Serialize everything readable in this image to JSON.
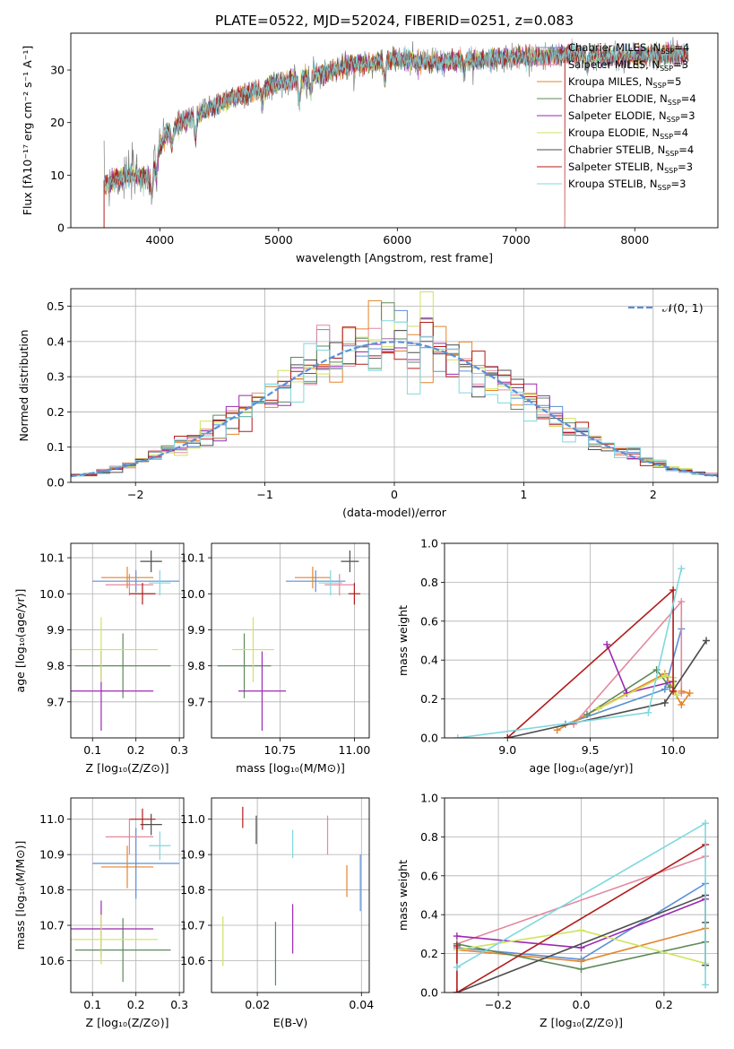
{
  "figure": {
    "title": "PLATE=0522, MJD=52024, FIBERID=0251, z=0.083"
  },
  "colors": {
    "Chabrier MILES": "#5b8fd9",
    "Salpeter MILES": "#e4899e",
    "Kroupa MILES": "#e3852b",
    "Chabrier ELODIE": "#5d8a5a",
    "Salpeter ELODIE": "#9a2ab1",
    "Kroupa ELODIE": "#cfe35e",
    "Chabrier STELIB": "#4d4d4d",
    "Salpeter STELIB": "#b31b1b",
    "Kroupa STELIB": "#7fd8df",
    "data": "#808080",
    "gaussian": "#5b8fd9"
  },
  "chart_data": [
    {
      "id": "spectrum",
      "type": "line",
      "xlabel": "wavelength [Angstrom, rest frame]",
      "ylabel": "Flux [fλ10⁻¹⁷ erg cm⁻² s⁻¹ A⁻¹]",
      "xlim": [
        3250,
        8700
      ],
      "ylim": [
        0,
        37
      ],
      "xticks": [
        4000,
        5000,
        6000,
        7000,
        8000
      ],
      "yticks": [
        0,
        10,
        20,
        30
      ],
      "legend_position": "top-right",
      "legend": [
        {
          "label": "Chabrier MILES, N",
          "sub": "SSP",
          "eq": "=4",
          "series": "Chabrier MILES"
        },
        {
          "label": "Salpeter MILES, N",
          "sub": "SSP",
          "eq": "=3",
          "series": "Salpeter MILES"
        },
        {
          "label": "Kroupa MILES, N",
          "sub": "SSP",
          "eq": "=5",
          "series": "Kroupa MILES"
        },
        {
          "label": "Chabrier ELODIE, N",
          "sub": "SSP",
          "eq": "=4",
          "series": "Chabrier ELODIE"
        },
        {
          "label": "Salpeter ELODIE, N",
          "sub": "SSP",
          "eq": "=3",
          "series": "Salpeter ELODIE"
        },
        {
          "label": "Kroupa ELODIE, N",
          "sub": "SSP",
          "eq": "=4",
          "series": "Kroupa ELODIE"
        },
        {
          "label": "Chabrier STELIB, N",
          "sub": "SSP",
          "eq": "=4",
          "series": "Chabrier STELIB"
        },
        {
          "label": "Salpeter STELIB, N",
          "sub": "SSP",
          "eq": "=3",
          "series": "Salpeter STELIB"
        },
        {
          "label": "Kroupa STELIB, N",
          "sub": "SSP",
          "eq": "=3",
          "series": "Kroupa STELIB"
        }
      ],
      "continuum": [
        [
          3530,
          8
        ],
        [
          3650,
          9.5
        ],
        [
          3800,
          10
        ],
        [
          3930,
          9.5
        ],
        [
          3960,
          13
        ],
        [
          4050,
          18
        ],
        [
          4200,
          20
        ],
        [
          4400,
          22.5
        ],
        [
          4600,
          24.5
        ],
        [
          4800,
          26
        ],
        [
          5000,
          27.5
        ],
        [
          5200,
          28.5
        ],
        [
          5400,
          29.5
        ],
        [
          5600,
          31
        ],
        [
          5800,
          31.5
        ],
        [
          6000,
          32
        ],
        [
          6200,
          31.5
        ],
        [
          6400,
          31.5
        ],
        [
          6600,
          32
        ],
        [
          6800,
          32
        ],
        [
          7000,
          32.5
        ],
        [
          7200,
          32.5
        ],
        [
          7400,
          33
        ],
        [
          7600,
          33
        ],
        [
          7800,
          32.5
        ],
        [
          8000,
          32.5
        ],
        [
          8200,
          33
        ],
        [
          8400,
          33
        ]
      ],
      "absorption_dips": [
        [
          3934,
          4
        ],
        [
          3969,
          4
        ],
        [
          4102,
          3
        ],
        [
          4300,
          4
        ],
        [
          4861,
          3
        ],
        [
          5175,
          5
        ],
        [
          5270,
          3
        ],
        [
          5893,
          4
        ],
        [
          6563,
          2
        ],
        [
          7600,
          3
        ]
      ],
      "model_cutoffs": [
        {
          "series": "Kroupa ELODIE",
          "x": 6800
        },
        {
          "series": "Salpeter STELIB",
          "x": 7410
        },
        {
          "series": "Chabrier ELODIE",
          "x": 3900
        }
      ]
    },
    {
      "id": "residual-histogram",
      "type": "histogram",
      "xlabel": "(data-model)/error",
      "ylabel": "Normed distribution",
      "xlim": [
        -2.5,
        2.5
      ],
      "ylim": [
        0,
        0.55
      ],
      "xticks": [
        -2,
        -1,
        0,
        1,
        2
      ],
      "yticks": [
        0.0,
        0.1,
        0.2,
        0.3,
        0.4,
        0.5
      ],
      "bin_width": 0.1,
      "reference_curve": {
        "name": "𝒩(0, 1)",
        "mean": 0,
        "sigma": 1
      },
      "legend_position": "top-right"
    },
    {
      "id": "age-vs-Z",
      "type": "errorbar",
      "xlabel": "Z [log₁₀(Z/Z⊙)]",
      "ylabel": "age  [log₁₀(age/yr)]",
      "xlim": [
        0.05,
        0.31
      ],
      "ylim": [
        9.6,
        10.14
      ],
      "xticks": [
        0.1,
        0.2,
        0.3
      ],
      "yticks": [
        9.7,
        9.8,
        9.9,
        10.0,
        10.1
      ],
      "points": [
        {
          "series": "Chabrier MILES",
          "x": 0.2,
          "xerr": 0.1,
          "y": 10.035,
          "yerr": 0.03
        },
        {
          "series": "Salpeter MILES",
          "x": 0.185,
          "xerr": 0.055,
          "y": 10.025,
          "yerr": 0.03
        },
        {
          "series": "Kroupa MILES",
          "x": 0.18,
          "xerr": 0.06,
          "y": 10.045,
          "yerr": 0.03
        },
        {
          "series": "Chabrier ELODIE",
          "x": 0.17,
          "xerr": 0.11,
          "y": 9.8,
          "yerr": 0.09
        },
        {
          "series": "Salpeter ELODIE",
          "x": 0.12,
          "xerr": 0.12,
          "y": 9.73,
          "yerr": 0.11
        },
        {
          "series": "Kroupa ELODIE",
          "x": 0.12,
          "xerr": 0.13,
          "y": 9.845,
          "yerr": 0.09
        },
        {
          "series": "Chabrier STELIB",
          "x": 0.235,
          "xerr": 0.025,
          "y": 10.09,
          "yerr": 0.03
        },
        {
          "series": "Salpeter STELIB",
          "x": 0.215,
          "xerr": 0.03,
          "y": 10.0,
          "yerr": 0.03
        },
        {
          "series": "Kroupa STELIB",
          "x": 0.255,
          "xerr": 0.025,
          "y": 10.03,
          "yerr": 0.035
        }
      ]
    },
    {
      "id": "age-vs-mass",
      "type": "errorbar",
      "xlabel": "mass [log₁₀(M/M⊙)]",
      "ylabel": "",
      "xlim": [
        10.52,
        11.05
      ],
      "ylim": [
        9.6,
        10.14
      ],
      "xticks": [
        10.75,
        11.0
      ],
      "yticks": [
        9.7,
        9.8,
        9.9,
        10.0,
        10.1
      ],
      "points": [
        {
          "series": "Chabrier MILES",
          "x": 10.87,
          "xerr": 0.1,
          "y": 10.035,
          "yerr": 0.03
        },
        {
          "series": "Salpeter MILES",
          "x": 10.95,
          "xerr": 0.05,
          "y": 10.025,
          "yerr": 0.03
        },
        {
          "series": "Kroupa MILES",
          "x": 10.86,
          "xerr": 0.06,
          "y": 10.045,
          "yerr": 0.03
        },
        {
          "series": "Chabrier ELODIE",
          "x": 10.63,
          "xerr": 0.09,
          "y": 9.8,
          "yerr": 0.09
        },
        {
          "series": "Salpeter ELODIE",
          "x": 10.69,
          "xerr": 0.08,
          "y": 9.73,
          "yerr": 0.11
        },
        {
          "series": "Kroupa ELODIE",
          "x": 10.66,
          "xerr": 0.07,
          "y": 9.845,
          "yerr": 0.09
        },
        {
          "series": "Chabrier STELIB",
          "x": 10.985,
          "xerr": 0.03,
          "y": 10.09,
          "yerr": 0.03
        },
        {
          "series": "Salpeter STELIB",
          "x": 11.0,
          "xerr": 0.02,
          "y": 10.0,
          "yerr": 0.03
        },
        {
          "series": "Kroupa STELIB",
          "x": 10.92,
          "xerr": 0.04,
          "y": 10.03,
          "yerr": 0.035
        }
      ]
    },
    {
      "id": "mass-weight-vs-age",
      "type": "line",
      "xlabel": "age  [log₁₀(age/yr)]",
      "ylabel": "mass weight",
      "xlim": [
        8.62,
        10.27
      ],
      "ylim": [
        0,
        1.0
      ],
      "xticks": [
        9.0,
        9.5,
        10.0
      ],
      "yticks": [
        0.0,
        0.2,
        0.4,
        0.6,
        0.8,
        1.0
      ],
      "series": [
        {
          "name": "Chabrier MILES",
          "points": [
            [
              9.35,
              0.07
            ],
            [
              9.95,
              0.25
            ],
            [
              10.05,
              0.56
            ]
          ]
        },
        {
          "name": "Salpeter MILES",
          "points": [
            [
              9.4,
              0.07
            ],
            [
              10.05,
              0.7
            ],
            [
              10.05,
              0.23
            ]
          ]
        },
        {
          "name": "Kroupa MILES",
          "points": [
            [
              9.3,
              0.04
            ],
            [
              9.95,
              0.33
            ],
            [
              10.05,
              0.17
            ],
            [
              10.1,
              0.23
            ],
            [
              10.05,
              0.24
            ]
          ]
        },
        {
          "name": "Chabrier ELODIE",
          "points": [
            [
              9.48,
              0.12
            ],
            [
              9.9,
              0.35
            ],
            [
              9.98,
              0.26
            ]
          ]
        },
        {
          "name": "Salpeter ELODIE",
          "points": [
            [
              9.6,
              0.48
            ],
            [
              9.72,
              0.23
            ],
            [
              10.0,
              0.29
            ]
          ]
        },
        {
          "name": "Kroupa ELODIE",
          "points": [
            [
              9.55,
              0.15
            ],
            [
              9.95,
              0.32
            ],
            [
              10.0,
              0.31
            ],
            [
              10.02,
              0.22
            ]
          ]
        },
        {
          "name": "Chabrier STELIB",
          "points": [
            [
              9.0,
              0.0
            ],
            [
              9.95,
              0.18
            ],
            [
              10.2,
              0.5
            ]
          ]
        },
        {
          "name": "Salpeter STELIB",
          "points": [
            [
              9.0,
              0.0
            ],
            [
              10.0,
              0.76
            ],
            [
              10.0,
              0.24
            ]
          ]
        },
        {
          "name": "Kroupa STELIB",
          "points": [
            [
              8.7,
              0.0
            ],
            [
              9.85,
              0.13
            ],
            [
              10.05,
              0.87
            ]
          ]
        }
      ]
    },
    {
      "id": "mass-vs-Z",
      "type": "errorbar",
      "xlabel": "Z [log₁₀(Z/Z⊙)]",
      "ylabel": "mass [log₁₀(M/M⊙)]",
      "xlim": [
        0.05,
        0.31
      ],
      "ylim": [
        10.51,
        11.06
      ],
      "xticks": [
        0.1,
        0.2,
        0.3
      ],
      "yticks": [
        10.6,
        10.7,
        10.8,
        10.9,
        11.0
      ],
      "points": [
        {
          "series": "Chabrier MILES",
          "x": 0.2,
          "xerr": 0.1,
          "y": 10.875,
          "yerr": 0.1
        },
        {
          "series": "Salpeter MILES",
          "x": 0.185,
          "xerr": 0.055,
          "y": 10.95,
          "yerr": 0.05
        },
        {
          "series": "Kroupa MILES",
          "x": 0.18,
          "xerr": 0.06,
          "y": 10.865,
          "yerr": 0.06
        },
        {
          "series": "Chabrier ELODIE",
          "x": 0.17,
          "xerr": 0.11,
          "y": 10.63,
          "yerr": 0.09
        },
        {
          "series": "Salpeter ELODIE",
          "x": 0.12,
          "xerr": 0.12,
          "y": 10.69,
          "yerr": 0.08
        },
        {
          "series": "Kroupa ELODIE",
          "x": 0.12,
          "xerr": 0.13,
          "y": 10.66,
          "yerr": 0.07
        },
        {
          "series": "Chabrier STELIB",
          "x": 0.235,
          "xerr": 0.025,
          "y": 10.985,
          "yerr": 0.03
        },
        {
          "series": "Salpeter STELIB",
          "x": 0.215,
          "xerr": 0.03,
          "y": 11.0,
          "yerr": 0.03
        },
        {
          "series": "Kroupa STELIB",
          "x": 0.255,
          "xerr": 0.025,
          "y": 10.925,
          "yerr": 0.04
        }
      ]
    },
    {
      "id": "mass-vs-EBV",
      "type": "errorbar",
      "xlabel": "E(B-V)",
      "ylabel": "",
      "xlim": [
        0.0112,
        0.0415
      ],
      "ylim": [
        10.51,
        11.06
      ],
      "xticks": [
        0.02,
        0.04
      ],
      "yticks": [
        10.6,
        10.7,
        10.8,
        10.9,
        11.0
      ],
      "points": [
        {
          "series": "Chabrier MILES",
          "x": 0.0398,
          "y": 10.82,
          "yerr": 0.08
        },
        {
          "series": "Salpeter MILES",
          "x": 0.0335,
          "y": 10.955,
          "yerr": 0.055
        },
        {
          "series": "Kroupa MILES",
          "x": 0.0372,
          "y": 10.825,
          "yerr": 0.045
        },
        {
          "series": "Chabrier ELODIE",
          "x": 0.0235,
          "y": 10.62,
          "yerr": 0.09
        },
        {
          "series": "Salpeter ELODIE",
          "x": 0.0268,
          "y": 10.69,
          "yerr": 0.07
        },
        {
          "series": "Kroupa ELODIE",
          "x": 0.0134,
          "y": 10.655,
          "yerr": 0.07
        },
        {
          "series": "Chabrier STELIB",
          "x": 0.0198,
          "y": 10.97,
          "yerr": 0.04
        },
        {
          "series": "Salpeter STELIB",
          "x": 0.0172,
          "y": 11.005,
          "yerr": 0.03
        },
        {
          "series": "Kroupa STELIB",
          "x": 0.0268,
          "y": 10.93,
          "yerr": 0.04
        }
      ]
    },
    {
      "id": "mass-weight-vs-Z",
      "type": "line",
      "xlabel": "Z [log₁₀(Z/Z⊙)]",
      "ylabel": "mass weight",
      "xlim": [
        -0.33,
        0.33
      ],
      "ylim": [
        0,
        1.0
      ],
      "xticks": [
        -0.2,
        0.0,
        0.2
      ],
      "yticks": [
        0.0,
        0.2,
        0.4,
        0.6,
        0.8,
        1.0
      ],
      "series": [
        {
          "name": "Chabrier MILES",
          "points": [
            [
              -0.3,
              0.23
            ],
            [
              0.0,
              0.17
            ],
            [
              0.3,
              0.56
            ]
          ]
        },
        {
          "name": "Salpeter MILES",
          "points": [
            [
              -0.3,
              0.25
            ],
            [
              0.3,
              0.7
            ]
          ]
        },
        {
          "name": "Kroupa MILES",
          "points": [
            [
              -0.3,
              0.22
            ],
            [
              0.0,
              0.16
            ],
            [
              0.3,
              0.33
            ]
          ]
        },
        {
          "name": "Chabrier ELODIE",
          "points": [
            [
              -0.3,
              0.25
            ],
            [
              0.0,
              0.12
            ],
            [
              0.3,
              0.26
            ]
          ]
        },
        {
          "name": "Salpeter ELODIE",
          "points": [
            [
              -0.3,
              0.29
            ],
            [
              0.0,
              0.23
            ],
            [
              0.3,
              0.48
            ]
          ]
        },
        {
          "name": "Kroupa ELODIE",
          "points": [
            [
              -0.3,
              0.22
            ],
            [
              0.0,
              0.32
            ],
            [
              0.3,
              0.15
            ]
          ]
        },
        {
          "name": "Chabrier STELIB",
          "points": [
            [
              -0.3,
              0.0
            ],
            [
              0.3,
              0.5
            ],
            [
              0.3,
              0.36
            ],
            [
              0.3,
              0.14
            ]
          ]
        },
        {
          "name": "Salpeter STELIB",
          "points": [
            [
              -0.3,
              0.24
            ],
            [
              -0.3,
              0.0
            ],
            [
              0.3,
              0.76
            ]
          ]
        },
        {
          "name": "Kroupa STELIB",
          "points": [
            [
              -0.3,
              0.13
            ],
            [
              0.3,
              0.87
            ],
            [
              0.3,
              0.04
            ]
          ]
        }
      ]
    }
  ]
}
